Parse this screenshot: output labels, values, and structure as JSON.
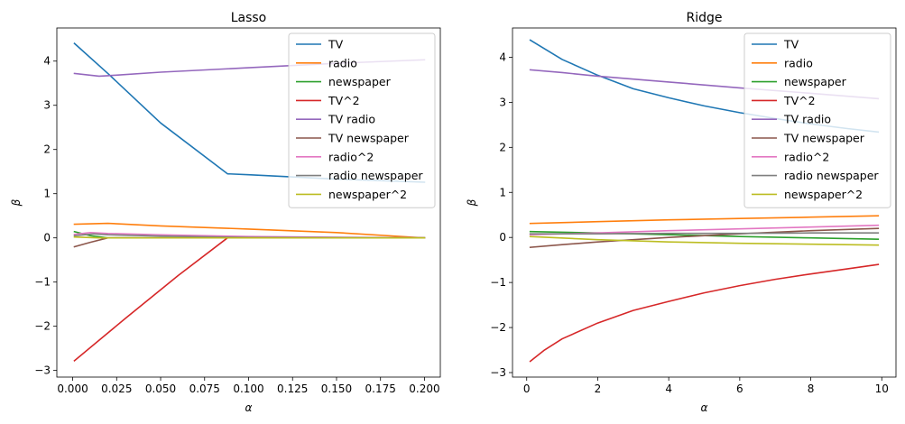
{
  "chart_data": [
    {
      "type": "line",
      "title": "Lasso",
      "xlabel": "α",
      "ylabel": "β",
      "xlim": [
        -0.009,
        0.209
      ],
      "ylim": [
        -3.15,
        4.75
      ],
      "xticks": [
        0.0,
        0.025,
        0.05,
        0.075,
        0.1,
        0.125,
        0.15,
        0.175,
        0.2
      ],
      "xtick_labels": [
        "0.000",
        "0.025",
        "0.050",
        "0.075",
        "0.100",
        "0.125",
        "0.150",
        "0.175",
        "0.200"
      ],
      "yticks": [
        -3,
        -2,
        -1,
        0,
        1,
        2,
        3,
        4
      ],
      "ytick_labels": [
        "−3",
        "−2",
        "−1",
        "0",
        "1",
        "2",
        "3",
        "4"
      ],
      "grid": false,
      "legend_position": "top-right",
      "series": [
        {
          "name": "TV",
          "color": "#1f77b4",
          "x": [
            0.001,
            0.02,
            0.05,
            0.088,
            0.1,
            0.15,
            0.2
          ],
          "y": [
            4.4,
            3.72,
            2.6,
            1.45,
            1.43,
            1.33,
            1.26
          ]
        },
        {
          "name": "radio",
          "color": "#ff7f0e",
          "x": [
            0.001,
            0.02,
            0.05,
            0.1,
            0.15,
            0.2
          ],
          "y": [
            0.31,
            0.33,
            0.27,
            0.2,
            0.12,
            0.0
          ]
        },
        {
          "name": "newspaper",
          "color": "#2ca02c",
          "x": [
            0.001,
            0.01,
            0.02,
            0.2
          ],
          "y": [
            0.14,
            0.05,
            0.0,
            0.0
          ]
        },
        {
          "name": "TV^2",
          "color": "#d62728",
          "x": [
            0.001,
            0.03,
            0.06,
            0.088,
            0.1,
            0.2
          ],
          "y": [
            -2.78,
            -1.82,
            -0.85,
            0.0,
            0.0,
            0.0
          ]
        },
        {
          "name": "TV radio",
          "color": "#9467bd",
          "x": [
            0.001,
            0.015,
            0.02,
            0.05,
            0.1,
            0.15,
            0.2
          ],
          "y": [
            3.72,
            3.66,
            3.67,
            3.75,
            3.85,
            3.95,
            4.03
          ]
        },
        {
          "name": "TV newspaper",
          "color": "#8c564b",
          "x": [
            0.001,
            0.01,
            0.02,
            0.2
          ],
          "y": [
            -0.2,
            -0.1,
            0.0,
            0.0
          ]
        },
        {
          "name": "radio^2",
          "color": "#e377c2",
          "x": [
            0.001,
            0.01,
            0.02,
            0.05,
            0.1,
            0.2
          ],
          "y": [
            0.08,
            0.12,
            0.1,
            0.07,
            0.03,
            0.0
          ]
        },
        {
          "name": "radio newspaper",
          "color": "#7f7f7f",
          "x": [
            0.001,
            0.012,
            0.02,
            0.05,
            0.1,
            0.2
          ],
          "y": [
            0.05,
            0.09,
            0.07,
            0.04,
            0.01,
            0.0
          ]
        },
        {
          "name": "newspaper^2",
          "color": "#bcbd22",
          "x": [
            0.001,
            0.015,
            0.03,
            0.2
          ],
          "y": [
            0.02,
            0.0,
            0.0,
            0.0
          ]
        }
      ]
    },
    {
      "type": "line",
      "title": "Ridge",
      "xlabel": "α",
      "ylabel": "β",
      "xlim": [
        -0.4,
        10.4
      ],
      "ylim": [
        -3.1,
        4.65
      ],
      "xticks": [
        0,
        2,
        4,
        6,
        8,
        10
      ],
      "xtick_labels": [
        "0",
        "2",
        "4",
        "6",
        "8",
        "10"
      ],
      "yticks": [
        -3,
        -2,
        -1,
        0,
        1,
        2,
        3,
        4
      ],
      "ytick_labels": [
        "−3",
        "−2",
        "−1",
        "0",
        "1",
        "2",
        "3",
        "4"
      ],
      "grid": false,
      "legend_position": "top-right",
      "series": [
        {
          "name": "TV",
          "color": "#1f77b4",
          "x": [
            0.1,
            1,
            2,
            3,
            4,
            5,
            6,
            7,
            8,
            9,
            9.9
          ],
          "y": [
            4.38,
            3.95,
            3.6,
            3.3,
            3.1,
            2.92,
            2.77,
            2.64,
            2.52,
            2.42,
            2.34
          ]
        },
        {
          "name": "radio",
          "color": "#ff7f0e",
          "x": [
            0.1,
            2,
            4,
            6,
            8,
            9.9
          ],
          "y": [
            0.31,
            0.35,
            0.39,
            0.42,
            0.45,
            0.48
          ]
        },
        {
          "name": "newspaper",
          "color": "#2ca02c",
          "x": [
            0.1,
            2,
            4,
            6,
            8,
            9.9
          ],
          "y": [
            0.13,
            0.1,
            0.06,
            0.02,
            -0.01,
            -0.04
          ]
        },
        {
          "name": "TV^2",
          "color": "#d62728",
          "x": [
            0.1,
            0.5,
            1,
            2,
            3,
            4,
            5,
            6,
            7,
            8,
            9,
            9.9
          ],
          "y": [
            -2.75,
            -2.5,
            -2.25,
            -1.9,
            -1.62,
            -1.42,
            -1.23,
            -1.07,
            -0.93,
            -0.81,
            -0.7,
            -0.6
          ]
        },
        {
          "name": "TV radio",
          "color": "#9467bd",
          "x": [
            0.1,
            1,
            2,
            4,
            6,
            8,
            9.9
          ],
          "y": [
            3.72,
            3.66,
            3.58,
            3.45,
            3.32,
            3.2,
            3.08
          ]
        },
        {
          "name": "TV newspaper",
          "color": "#8c564b",
          "x": [
            0.1,
            1,
            2,
            4,
            6,
            8,
            9.9
          ],
          "y": [
            -0.22,
            -0.16,
            -0.1,
            0.0,
            0.08,
            0.15,
            0.2
          ]
        },
        {
          "name": "radio^2",
          "color": "#e377c2",
          "x": [
            0.1,
            2,
            4,
            6,
            8,
            9.9
          ],
          "y": [
            0.06,
            0.1,
            0.15,
            0.19,
            0.23,
            0.27
          ]
        },
        {
          "name": "radio newspaper",
          "color": "#7f7f7f",
          "x": [
            0.1,
            2,
            4,
            6,
            8,
            9.9
          ],
          "y": [
            0.08,
            0.08,
            0.09,
            0.09,
            0.1,
            0.1
          ]
        },
        {
          "name": "newspaper^2",
          "color": "#bcbd22",
          "x": [
            0.1,
            2,
            4,
            6,
            8,
            9.9
          ],
          "y": [
            0.02,
            -0.05,
            -0.1,
            -0.13,
            -0.15,
            -0.17
          ]
        }
      ]
    }
  ]
}
